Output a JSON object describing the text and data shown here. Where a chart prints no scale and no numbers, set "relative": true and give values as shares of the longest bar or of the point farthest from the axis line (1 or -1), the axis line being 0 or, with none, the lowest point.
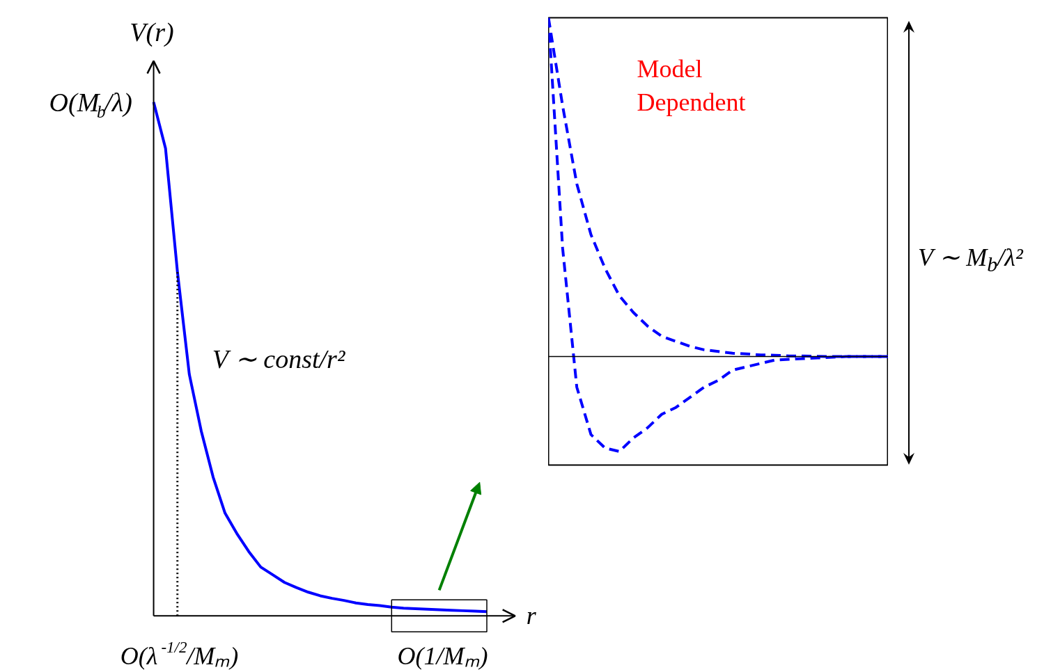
{
  "chart_data": [
    {
      "type": "line",
      "relative": true,
      "xlabel": "r",
      "ylabel": "V(r)",
      "categories": [
        null,
        null,
        null,
        null,
        null,
        null,
        null,
        null,
        null,
        null,
        null,
        null,
        null,
        null,
        null,
        null,
        null,
        null,
        null,
        null,
        null,
        null,
        null,
        null,
        null,
        null,
        null,
        null,
        null
      ],
      "series": [
        {
          "color": "#0000ff",
          "line_style": "solid",
          "values": [
            1,
            0.91,
            0.67,
            0.47,
            0.36,
            0.27,
            0.2,
            0.16,
            0.125,
            0.095,
            0.08,
            0.065,
            0.055,
            0.046,
            0.039,
            0.034,
            0.03,
            0.025,
            0.022,
            0.02,
            0.017,
            0.015,
            0.014,
            0.013,
            0.012,
            0.011,
            0.01,
            0.009,
            0.008
          ]
        }
      ],
      "annotations": [
        "O(M$_{b}$/λ)",
        "V ∼ const/r²",
        "O(λ$^{-1/2}$/Mₘ)",
        "O(1/Mₘ)"
      ]
    },
    {
      "type": "line",
      "relative": true,
      "categories": [
        null,
        null,
        null,
        null,
        null,
        null,
        null,
        null,
        null,
        null,
        null,
        null,
        null,
        null,
        null,
        null,
        null,
        null,
        null,
        null,
        null,
        null,
        null,
        null,
        null
      ],
      "series": [
        {
          "color": "#0000ff",
          "line_style": "dashed",
          "values": [
            1.0,
            0.74,
            0.51,
            0.36,
            0.26,
            0.18,
            0.13,
            0.09,
            0.06,
            0.045,
            0.03,
            0.02,
            0.015,
            0.01,
            0.008,
            0.005,
            0.004,
            0.002,
            0.002,
            0.001,
            0,
            0,
            0,
            0,
            0
          ]
        },
        {
          "color": "#0000ff",
          "line_style": "dashed",
          "values": [
            1.0,
            0.32,
            -0.09,
            -0.23,
            -0.27,
            -0.28,
            -0.24,
            -0.21,
            -0.17,
            -0.15,
            -0.12,
            -0.09,
            -0.07,
            -0.04,
            -0.03,
            -0.02,
            -0.01,
            -0.008,
            -0.006,
            -0.004,
            -0.002,
            0,
            0,
            0,
            0
          ]
        }
      ],
      "annotations": [
        "Model\nDependent",
        "V ∼ M$_{b}$/λ²"
      ]
    }
  ]
}
